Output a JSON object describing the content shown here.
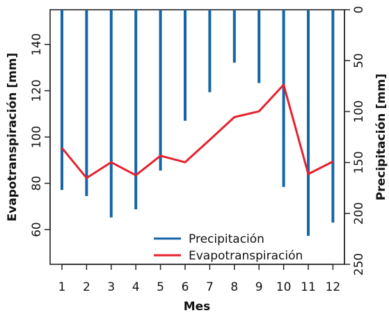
{
  "chart_data": {
    "type": "line",
    "title": "",
    "xlabel": "Mes",
    "ylabel_left": "Evapotranspiración [mm]",
    "ylabel_right": "Precipitación [mm]",
    "categories": [
      "1",
      "2",
      "3",
      "4",
      "5",
      "6",
      "7",
      "8",
      "9",
      "10",
      "11",
      "12"
    ],
    "left_axis": {
      "ylim": [
        45,
        155
      ],
      "ticks": [
        "60",
        "80",
        "100",
        "120",
        "140"
      ]
    },
    "right_axis": {
      "ylim": [
        0,
        250
      ],
      "reversed": true,
      "ticks": [
        "0",
        "50",
        "100",
        "150",
        "200",
        "250"
      ]
    },
    "legend_position": "bottom-center",
    "grid": false,
    "series": [
      {
        "name": "Precipitación",
        "kind": "bars-from-top",
        "axis": "right",
        "color": "#1565a7",
        "values": [
          177,
          183,
          204,
          196,
          158,
          109,
          81,
          52,
          72,
          174,
          222,
          209
        ]
      },
      {
        "name": "Evapotranspiración",
        "kind": "line",
        "axis": "left",
        "color": "#e5212e",
        "values": [
          95.3,
          82.3,
          89.1,
          83.5,
          91.9,
          89.1,
          98.8,
          108.6,
          111.1,
          122.6,
          84.0,
          89.4
        ]
      }
    ]
  }
}
